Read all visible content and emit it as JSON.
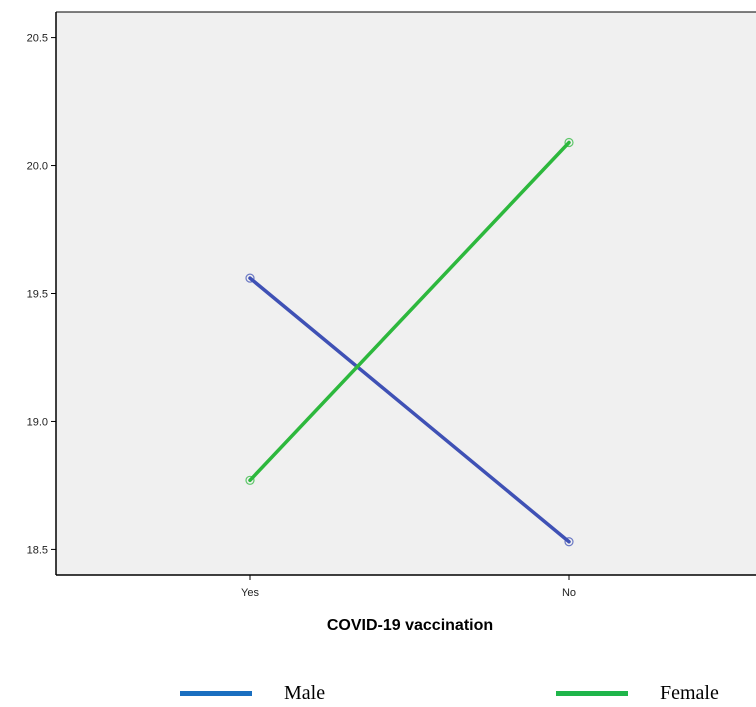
{
  "chart_data": {
    "type": "line",
    "title": "",
    "xlabel": "COVID-19 vaccination",
    "ylabel": "",
    "categories": [
      "Yes",
      "No"
    ],
    "ylim": [
      18.4,
      20.6
    ],
    "yticks": [
      "18.5",
      "19.0",
      "19.5",
      "20.0",
      "20.5"
    ],
    "grid": false,
    "legend_position": "bottom",
    "series": [
      {
        "name": "Male",
        "values": [
          19.56,
          18.53
        ],
        "color": "#3f51b5"
      },
      {
        "name": "Female",
        "values": [
          18.77,
          20.09
        ],
        "color": "#2db83d"
      }
    ]
  },
  "legend": {
    "items": [
      {
        "label": "Male",
        "color": "#1a6fc0"
      },
      {
        "label": "Female",
        "color": "#1fb54a"
      }
    ]
  },
  "colors": {
    "plot_background": "#f0f0f0",
    "axis": "#000000"
  }
}
